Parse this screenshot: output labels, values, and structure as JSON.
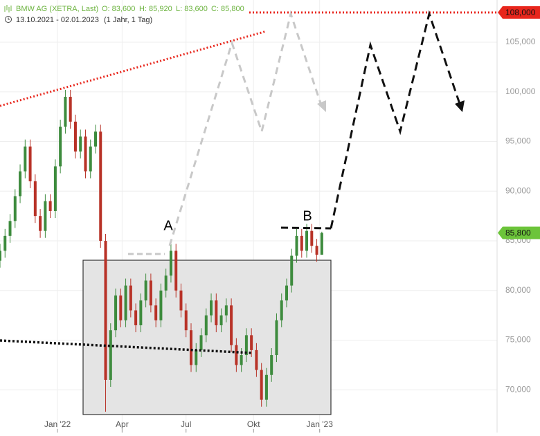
{
  "chart_data": {
    "type": "candlestick",
    "title": "BMW AG (XETRA, Last)",
    "ohlc_labels": [
      "O: 83,600",
      "H: 85,920",
      "L: 83,600",
      "C: 85,800"
    ],
    "date_range": "13.10.2021 - 02.01.2023",
    "period": "(1 Jahr, 1 Tag)",
    "x": [
      0,
      7,
      14,
      21,
      28,
      35,
      42,
      49,
      56,
      63,
      70,
      77,
      84,
      91,
      98,
      105,
      112,
      119,
      126,
      133,
      140,
      147,
      154,
      161,
      168,
      175,
      182,
      189,
      196,
      203,
      210,
      217,
      224,
      231,
      238,
      245,
      252,
      259,
      266,
      273,
      280,
      287,
      294,
      301,
      308,
      315,
      322,
      329,
      336,
      343,
      350,
      357,
      364,
      371,
      378,
      385,
      392,
      399,
      406,
      413,
      420,
      427,
      434,
      441,
      448
    ],
    "open": [
      83000,
      84000,
      85500,
      87000,
      89500,
      92000,
      94500,
      91000,
      87500,
      86000,
      89000,
      88000,
      92500,
      96500,
      99500,
      97000,
      94000,
      95500,
      92000,
      94500,
      96000,
      85000,
      71000,
      76000,
      79500,
      77000,
      80500,
      78000,
      76500,
      79000,
      81000,
      78500,
      77000,
      80000,
      81500,
      84000,
      80000,
      78000,
      76000,
      72500,
      74000,
      75500,
      77500,
      79000,
      76500,
      77500,
      78500,
      74500,
      72500,
      73500,
      75500,
      74000,
      72000,
      69000,
      71500,
      73500,
      77000,
      79000,
      80500,
      83500,
      85500,
      84000,
      86000,
      84500,
      83600
    ],
    "high": [
      84700,
      86200,
      87700,
      90200,
      92700,
      95200,
      95200,
      91700,
      88200,
      89700,
      89700,
      93200,
      97200,
      100200,
      100200,
      97700,
      96200,
      96200,
      95200,
      96700,
      96700,
      85700,
      76700,
      80200,
      80200,
      81200,
      81200,
      78700,
      79700,
      81700,
      81700,
      79200,
      80700,
      82200,
      84700,
      84700,
      80700,
      78700,
      76700,
      74700,
      76200,
      78200,
      79700,
      79700,
      78200,
      79200,
      79200,
      75200,
      74200,
      76200,
      76200,
      74700,
      72700,
      72200,
      74200,
      77700,
      79700,
      81200,
      84200,
      86200,
      86200,
      86700,
      86700,
      85200,
      85920
    ],
    "low": [
      82300,
      83300,
      84800,
      86300,
      88800,
      91300,
      90300,
      86800,
      85300,
      85300,
      87300,
      87300,
      91800,
      95800,
      96300,
      93300,
      93300,
      91300,
      91300,
      93800,
      84300,
      67800,
      70300,
      75300,
      76300,
      76300,
      77300,
      75800,
      75800,
      78300,
      77800,
      76300,
      76300,
      79300,
      80800,
      79300,
      77300,
      75300,
      71800,
      71800,
      73300,
      74800,
      76800,
      75800,
      75800,
      76800,
      73800,
      71800,
      71800,
      72800,
      73300,
      71300,
      68300,
      68300,
      70800,
      72800,
      76300,
      78300,
      79800,
      82800,
      83300,
      83300,
      83800,
      82900,
      83600
    ],
    "close": [
      84000,
      85500,
      87000,
      89500,
      92000,
      94500,
      91000,
      87500,
      86000,
      89000,
      88000,
      92500,
      96500,
      99500,
      97000,
      94000,
      95500,
      92000,
      94500,
      96000,
      85000,
      71000,
      76000,
      79500,
      77000,
      80500,
      78000,
      76500,
      79000,
      81000,
      78500,
      77000,
      80000,
      81500,
      84000,
      80000,
      78000,
      76000,
      72500,
      74000,
      75500,
      77500,
      79000,
      76500,
      77500,
      78500,
      74500,
      72500,
      73500,
      75500,
      74000,
      72000,
      69000,
      71500,
      73500,
      77000,
      79000,
      80500,
      83500,
      85500,
      84000,
      86000,
      84500,
      83600,
      85800
    ],
    "up_color": "#3d8b3d",
    "down_color": "#b83227",
    "xlim": [
      0,
      692
    ],
    "ylim": [
      65700,
      109250
    ],
    "xticks": [
      {
        "value": 80,
        "label": "Jan '22"
      },
      {
        "value": 170,
        "label": "Apr"
      },
      {
        "value": 259,
        "label": "Jul"
      },
      {
        "value": 353,
        "label": "Okt"
      },
      {
        "value": 445,
        "label": "Jan '23"
      }
    ],
    "yticks": [
      {
        "value": 70000,
        "label": "70,000"
      },
      {
        "value": 75000,
        "label": "75,000"
      },
      {
        "value": 80000,
        "label": "80,000"
      },
      {
        "value": 85000,
        "label": "85,000"
      },
      {
        "value": 90000,
        "label": "90,000"
      },
      {
        "value": 95000,
        "label": "95,000"
      },
      {
        "value": 100000,
        "label": "100,000"
      },
      {
        "value": 105000,
        "label": "105,000"
      }
    ],
    "grid": true,
    "price_tags": [
      {
        "value": 108000,
        "label": "108,000",
        "color": "#e8261c"
      },
      {
        "value": 85800,
        "label": "85,800",
        "color": "#6cc43a"
      }
    ],
    "annotations": [
      "A",
      "B"
    ]
  }
}
